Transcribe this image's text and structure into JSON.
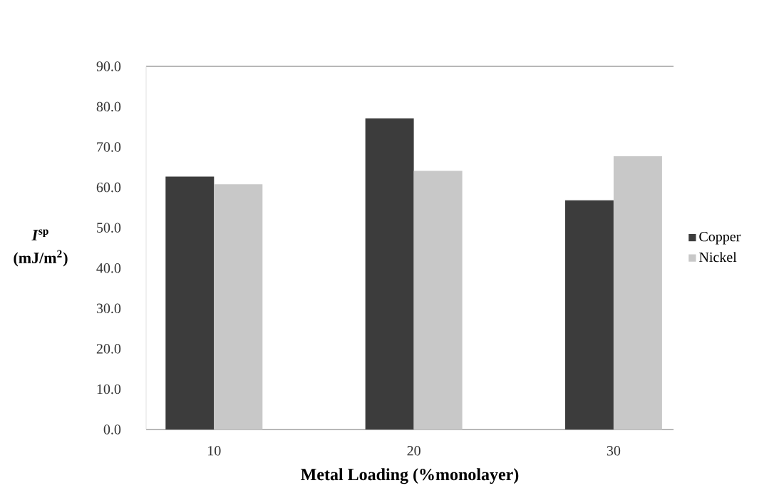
{
  "chart_data": {
    "type": "bar",
    "xlabel": "Metal Loading (%monolayer)",
    "ylabel": "*I*$^{sp}$ (mJ/m$^{2}$)",
    "categories": [
      "10",
      "20",
      "30"
    ],
    "series": [
      {
        "name": "Copper",
        "color": "#3c3c3c",
        "values": [
          62.7,
          77.1,
          56.8
        ]
      },
      {
        "name": "Nickel",
        "color": "#c8c8c8",
        "values": [
          60.8,
          64.1,
          67.7
        ]
      }
    ],
    "ylim": [
      0,
      90
    ],
    "yticks": [
      {
        "value": 0,
        "label": "0.0"
      },
      {
        "value": 10,
        "label": "10.0"
      },
      {
        "value": 20,
        "label": "20.0"
      },
      {
        "value": 30,
        "label": "30.0"
      },
      {
        "value": 40,
        "label": "40.0"
      },
      {
        "value": 50,
        "label": "50.0"
      },
      {
        "value": 60,
        "label": "60.0"
      },
      {
        "value": 70,
        "label": "70.0"
      },
      {
        "value": 80,
        "label": "80.0"
      },
      {
        "value": 90,
        "label": "90.0"
      }
    ],
    "legend": "right",
    "grid": false
  }
}
